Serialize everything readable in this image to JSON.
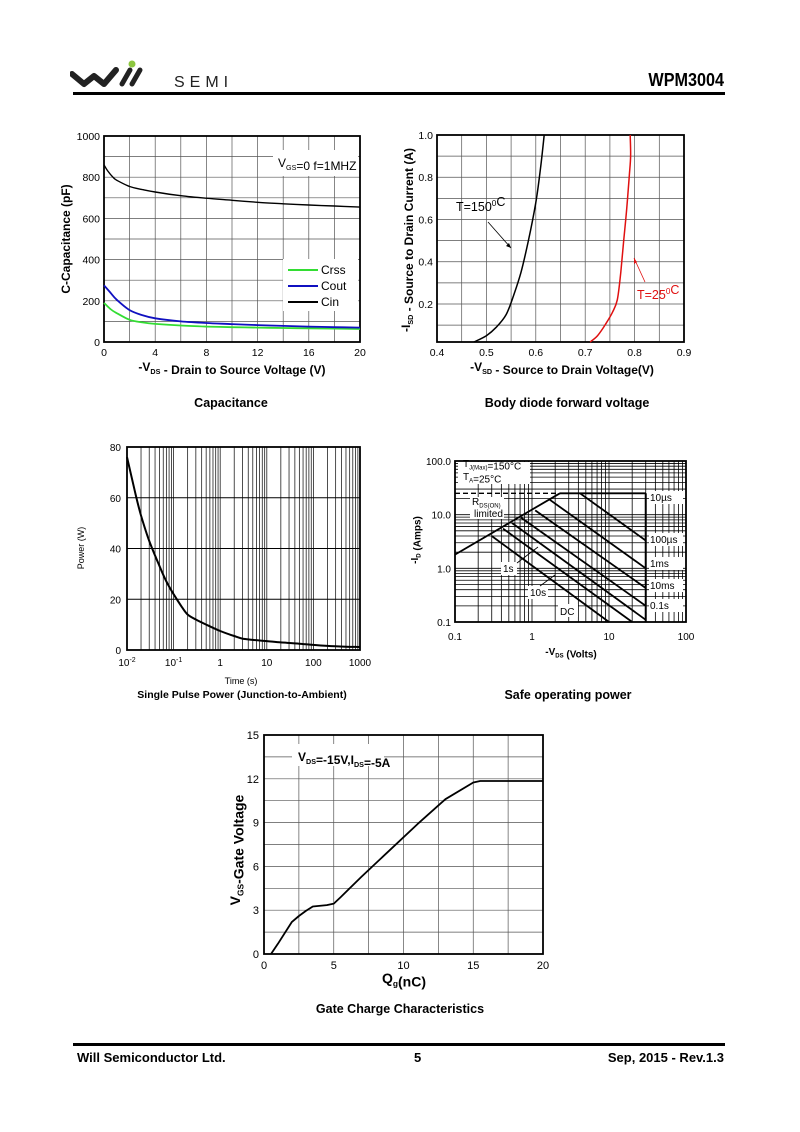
{
  "header": {
    "brand_text": "SEMI",
    "part_number": "WPM3004"
  },
  "footer": {
    "company": "Will Semiconductor Ltd.",
    "page": "5",
    "revision": "Sep, 2015 - Rev.1.3"
  },
  "colors": {
    "crss": "#33dd33",
    "cout": "#1010c0",
    "cin": "#000000",
    "t25": "#e01010",
    "logo_dot": "#8cc63f"
  },
  "chart_data": [
    {
      "id": "capacitance",
      "type": "line",
      "title": "Capacitance",
      "xlabel_pre": "-V",
      "xlabel_sub": "DS",
      "xlabel_post": " - Drain to Source Voltage (V)",
      "ylabel": "C-Capacitance (pF)",
      "xlim": [
        0,
        20
      ],
      "ylim": [
        0,
        1000
      ],
      "xticks": [
        0,
        4,
        8,
        12,
        16,
        20
      ],
      "yticks": [
        0,
        200,
        400,
        600,
        800,
        1000
      ],
      "xgrid": [
        0,
        2,
        4,
        6,
        8,
        10,
        12,
        14,
        16,
        18,
        20
      ],
      "ygrid": [
        0,
        100,
        200,
        300,
        400,
        500,
        600,
        700,
        800,
        900,
        1000
      ],
      "annotation": {
        "pre": "V",
        "sub": "GS",
        "post": "=0 f=1MHZ"
      },
      "legend": [
        "Crss",
        "Cout",
        "Cin"
      ],
      "legend_position": "right-middle",
      "series": [
        {
          "name": "Crss",
          "x": [
            0,
            0.5,
            1,
            2,
            3,
            4,
            6,
            8,
            10,
            12,
            14,
            16,
            18,
            20
          ],
          "values": [
            190,
            160,
            140,
            108,
            95,
            88,
            80,
            75,
            72,
            70,
            68,
            66,
            65,
            63
          ]
        },
        {
          "name": "Cout",
          "x": [
            0,
            0.5,
            1,
            2,
            3,
            4,
            6,
            8,
            10,
            12,
            14,
            16,
            18,
            20
          ],
          "values": [
            275,
            240,
            205,
            155,
            130,
            115,
            100,
            92,
            87,
            82,
            78,
            75,
            72,
            70
          ]
        },
        {
          "name": "Cin",
          "x": [
            0,
            0.3,
            0.7,
            1,
            2,
            3,
            4,
            6,
            8,
            10,
            12,
            14,
            16,
            18,
            20
          ],
          "values": [
            860,
            830,
            800,
            785,
            755,
            740,
            728,
            710,
            698,
            688,
            678,
            671,
            665,
            660,
            655
          ]
        }
      ]
    },
    {
      "id": "body-diode",
      "type": "line",
      "title": "Body diode forward voltage",
      "xlabel_pre": "-V",
      "xlabel_sub": "SD",
      "xlabel_post": " - Source to Drain Voltage(V)",
      "ylabel_pre": "-I",
      "ylabel_sub": "SD",
      "ylabel_post": " - Source to Drain Current (A)",
      "xlim": [
        0.4,
        0.9
      ],
      "ylim": [
        0.02,
        1.0
      ],
      "xticks": [
        "0.4",
        "0.5",
        "0.6",
        "0.7",
        "0.8",
        "0.9"
      ],
      "yticks": [
        "0.2",
        "0.4",
        "0.6",
        "0.8",
        "1.0"
      ],
      "xgrid": [
        0.4,
        0.45,
        0.5,
        0.55,
        0.6,
        0.65,
        0.7,
        0.75,
        0.8,
        0.85,
        0.9
      ],
      "ygrid": [
        0.1,
        0.2,
        0.3,
        0.4,
        0.5,
        0.6,
        0.7,
        0.8,
        0.9,
        1.0
      ],
      "series": [
        {
          "name": "T=150°C",
          "label_main": "T=150",
          "label_sup": "0",
          "label_end": "C",
          "x": [
            0.475,
            0.5,
            0.52,
            0.54,
            0.555,
            0.57,
            0.585,
            0.6,
            0.61,
            0.617
          ],
          "values": [
            0.02,
            0.05,
            0.09,
            0.15,
            0.24,
            0.35,
            0.5,
            0.68,
            0.85,
            1.0
          ]
        },
        {
          "name": "T=25°C",
          "label_main": "T=25",
          "label_sup": "0",
          "label_end": "C",
          "x": [
            0.71,
            0.725,
            0.74,
            0.755,
            0.765,
            0.772,
            0.778,
            0.784,
            0.789,
            0.792,
            0.791
          ],
          "values": [
            0.02,
            0.05,
            0.1,
            0.16,
            0.22,
            0.35,
            0.5,
            0.65,
            0.8,
            0.9,
            1.0
          ]
        }
      ]
    },
    {
      "id": "single-pulse-power",
      "type": "line",
      "title": "Single Pulse Power (Junction-to-Ambient)",
      "xlabel": "Time (s)",
      "ylabel": "Power (W)",
      "xscale": "log",
      "xlim": [
        0.01,
        1000
      ],
      "ylim": [
        0,
        80
      ],
      "xticks": [
        {
          "value": 0.01,
          "base": "10",
          "exp": "-2"
        },
        {
          "value": 0.1,
          "base": "10",
          "exp": "-1"
        },
        {
          "value": 1,
          "base": "1",
          "exp": ""
        },
        {
          "value": 10,
          "base": "10",
          "exp": ""
        },
        {
          "value": 100,
          "base": "100",
          "exp": ""
        },
        {
          "value": 1000,
          "base": "1000",
          "exp": ""
        }
      ],
      "yticks": [
        0,
        20,
        40,
        60,
        80
      ],
      "series": [
        {
          "name": "Power",
          "x": [
            0.01,
            0.015,
            0.02,
            0.03,
            0.05,
            0.07,
            0.1,
            0.15,
            0.2,
            0.3,
            0.5,
            1,
            2,
            3,
            5,
            10,
            20,
            50,
            100,
            200,
            500,
            1000
          ],
          "values": [
            76,
            62,
            53,
            43,
            33,
            27,
            22,
            17,
            14,
            12,
            10,
            7.5,
            5.5,
            4.5,
            4,
            3.5,
            3,
            2.5,
            2,
            1.6,
            1.3,
            1.2
          ]
        }
      ]
    },
    {
      "id": "safe-operating-area",
      "type": "line",
      "title": "Safe operating power",
      "xlabel_pre": "-V",
      "xlabel_sub": "DS",
      "xlabel_post": " (Volts)",
      "ylabel_pre": "-I",
      "ylabel_sub": "D",
      "ylabel_post": " (Amps)",
      "xscale": "log",
      "yscale": "log",
      "xlim": [
        0.1,
        100
      ],
      "ylim": [
        0.1,
        100
      ],
      "xticks": [
        "0.1",
        "1",
        "10",
        "100"
      ],
      "yticks": [
        "0.1",
        "1.0",
        "10.0",
        "100.0"
      ],
      "annotations": {
        "tj_pre": "T",
        "tj_sub": "J(Max)",
        "tj_post": "=150°C",
        "ta_pre": "T",
        "ta_sub": "A",
        "ta_post": "=25°C",
        "rds_pre": "R",
        "rds_sub": "DS(ON)",
        "rds_line2": "limited"
      },
      "current_limit": 25,
      "vds_limit": 30,
      "rds_limit": {
        "x": [
          0.1,
          2.3
        ],
        "values": [
          1.8,
          25
        ]
      },
      "series": [
        {
          "name": "10µs",
          "x": [
            2.3,
            4.2,
            30
          ],
          "values": [
            25,
            25,
            25
          ]
        },
        {
          "name": "100µs",
          "x": [
            4.2,
            30
          ],
          "values": [
            25,
            3.3
          ]
        },
        {
          "name": "1ms",
          "x": [
            1.7,
            30
          ],
          "values": [
            19,
            1.0
          ]
        },
        {
          "name": "10ms",
          "x": [
            1.1,
            30
          ],
          "values": [
            12,
            0.43
          ]
        },
        {
          "name": "0.1s",
          "x": [
            0.72,
            30
          ],
          "values": [
            8.8,
            0.2
          ]
        },
        {
          "name": "1s",
          "x": [
            0.55,
            30
          ],
          "values": [
            7,
            0.11
          ]
        },
        {
          "name": "10s",
          "x": [
            0.42,
            20
          ],
          "values": [
            5.5,
            0.1
          ]
        },
        {
          "name": "DC",
          "x": [
            0.3,
            10
          ],
          "values": [
            4,
            0.1
          ]
        }
      ],
      "labels": [
        "10µs",
        "100µs",
        "1ms",
        "10ms",
        "0.1s",
        "1s",
        "10s",
        "DC"
      ]
    },
    {
      "id": "gate-charge",
      "type": "line",
      "title": "Gate Charge Characteristics",
      "xlabel_pre": "Q",
      "xlabel_sub": "g",
      "xlabel_post": "(nC)",
      "ylabel_pre": "V",
      "ylabel_sub": "GS",
      "ylabel_post": "-Gate Voltage",
      "xlim": [
        0,
        20
      ],
      "ylim": [
        0,
        15
      ],
      "xticks": [
        0,
        5,
        10,
        15,
        20
      ],
      "yticks": [
        0,
        3,
        6,
        9,
        12,
        15
      ],
      "annotation": {
        "a": "V",
        "a_sub": "DS",
        "b": "=-15V,I",
        "b_sub": "DS",
        "c": "=-5A"
      },
      "series": [
        {
          "name": "VGS",
          "x": [
            0.5,
            1,
            2,
            2.5,
            3,
            3.5,
            4.5,
            5,
            5.5,
            7,
            9,
            11,
            13,
            15,
            15.5,
            20
          ],
          "values": [
            0,
            0.7,
            2.2,
            2.6,
            2.95,
            3.25,
            3.35,
            3.45,
            3.9,
            5.3,
            7.1,
            8.9,
            10.6,
            11.75,
            11.85,
            11.85
          ]
        }
      ]
    }
  ]
}
